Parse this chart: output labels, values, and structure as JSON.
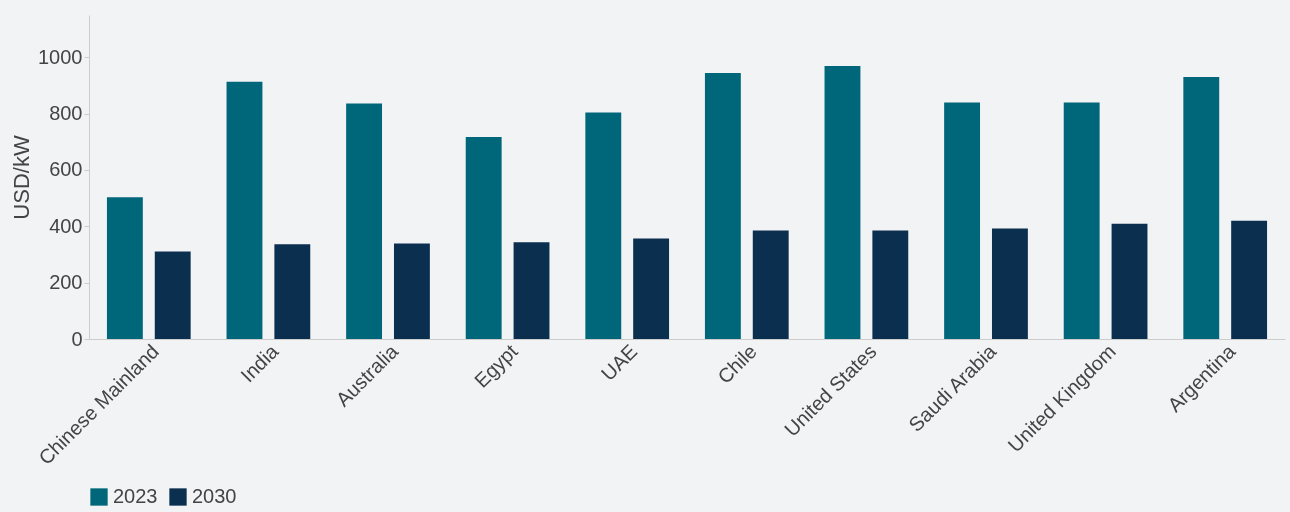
{
  "chart_data": {
    "type": "bar",
    "ylabel": "USD/kW",
    "categories": [
      "Chinese Mainland",
      "India",
      "Australia",
      "Egypt",
      "UAE",
      "Chile",
      "United States",
      "Saudi Arabia",
      "United Kingdom",
      "Argentina"
    ],
    "series": [
      {
        "name": "2023",
        "color": "#00667a",
        "values": [
          503,
          913,
          836,
          717,
          804,
          944,
          969,
          839,
          839,
          930
        ]
      },
      {
        "name": "2030",
        "color": "#0a2f4f",
        "values": [
          311,
          336,
          339,
          343,
          357,
          385,
          385,
          392,
          409,
          420
        ]
      }
    ],
    "ylim": [
      0,
      1150
    ],
    "yticks": [
      0,
      200,
      400,
      600,
      800,
      1000
    ],
    "grid": false,
    "legend": "bottom"
  }
}
